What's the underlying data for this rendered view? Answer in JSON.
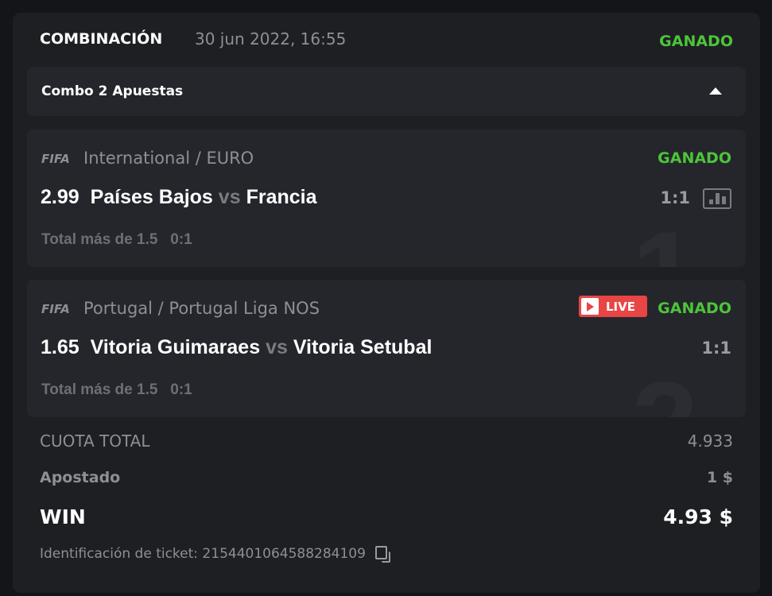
{
  "header": {
    "title": "COMBINACIÓN",
    "date": "30 jun 2022, 16:55",
    "status": "GANADO"
  },
  "combo": {
    "label": "Combo 2 Apuestas"
  },
  "bets": [
    {
      "index": "1",
      "provider": "FIFA",
      "league": "International / EURO",
      "status": "GANADO",
      "odds": "2.99",
      "home": "Países Bajos",
      "vs": "vs",
      "away": "Francia",
      "market": "Total más de 1.5",
      "pick": "0:1",
      "score": "1:1",
      "live": false
    },
    {
      "index": "2",
      "provider": "FIFA",
      "league": "Portugal / Portugal Liga NOS",
      "status": "GANADO",
      "odds": "1.65",
      "home": "Vitoria Guimaraes",
      "vs": "vs",
      "away": "Vitoria Setubal",
      "market": "Total más de 1.5",
      "pick": "0:1",
      "score": "1:1",
      "live": true,
      "live_label": "LIVE"
    }
  ],
  "summary": {
    "total_odds_label": "CUOTA TOTAL",
    "total_odds": "4.933",
    "stake_label": "Apostado",
    "stake": "1 $",
    "win_label": "WIN",
    "win": "4.93 $"
  },
  "ticket": {
    "label": "Identificación de ticket: 2154401064588284109"
  },
  "colors": {
    "win": "#4cc53a",
    "live": "#e84545"
  }
}
